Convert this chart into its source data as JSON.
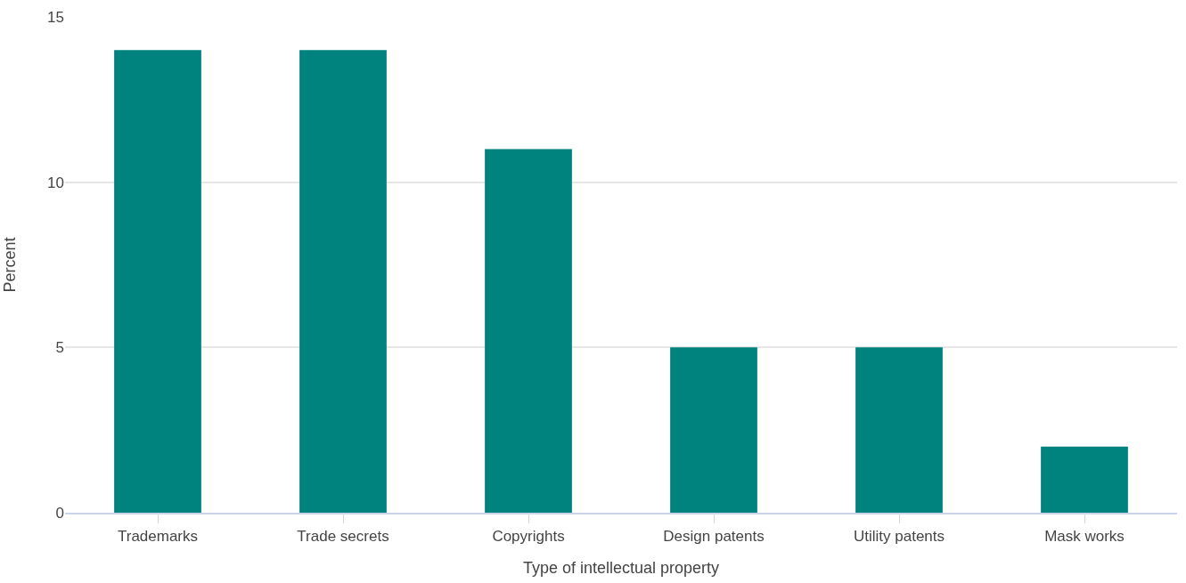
{
  "chart_data": {
    "type": "bar",
    "xlabel": "Type of intellectual property",
    "ylabel": "Percent",
    "categories": [
      "Trademarks",
      "Trade secrets",
      "Copyrights",
      "Design patents",
      "Utility patents",
      "Mask works"
    ],
    "values": [
      14,
      14,
      11,
      5,
      5,
      2
    ],
    "color": "#00827f",
    "ylim": [
      0,
      15
    ],
    "yticks": [
      0,
      5,
      10,
      15
    ],
    "grid": "y",
    "legend": false
  }
}
